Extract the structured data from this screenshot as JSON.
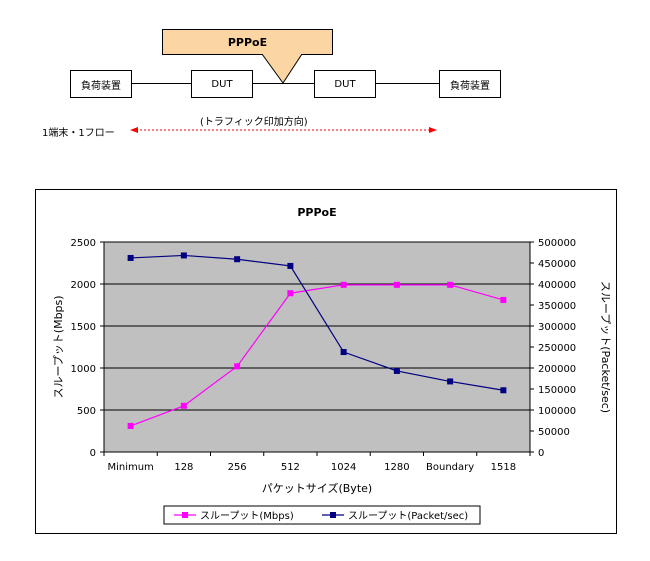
{
  "diagram": {
    "load_device_left": "負荷装置",
    "dut_left": "DUT",
    "dut_right": "DUT",
    "load_device_right": "負荷装置",
    "callout": "PPPoE",
    "direction_label": "(トラフィック印加方向)",
    "flow_label": "1端末・1フロー"
  },
  "chart_data": {
    "type": "line",
    "title": "PPPoE",
    "categories": [
      "Minimum",
      "128",
      "256",
      "512",
      "1024",
      "1280",
      "Boundary",
      "1518"
    ],
    "xlabel": "パケットサイズ(Byte)",
    "ylabel": "スループット(Mbps)",
    "y2label": "スループット(Packet/sec)",
    "ylim": [
      0,
      2500
    ],
    "y2lim": [
      0,
      500000
    ],
    "yticks": [
      "0",
      "500",
      "1000",
      "1500",
      "2000",
      "2500"
    ],
    "y2ticks": [
      "0",
      "50000",
      "100000",
      "150000",
      "200000",
      "250000",
      "300000",
      "350000",
      "400000",
      "450000",
      "500000"
    ],
    "grid": true,
    "legend_position": "bottom",
    "series": [
      {
        "name": "スループット(Mbps)",
        "axis": "left",
        "color": "#ff00ff",
        "values": [
          310,
          550,
          1020,
          1890,
          1990,
          1990,
          1990,
          1810
        ]
      },
      {
        "name": "スループット(Packet/sec)",
        "axis": "right",
        "color": "#000080",
        "values": [
          462000,
          468000,
          459000,
          443000,
          238000,
          193000,
          168000,
          147000
        ]
      }
    ]
  }
}
